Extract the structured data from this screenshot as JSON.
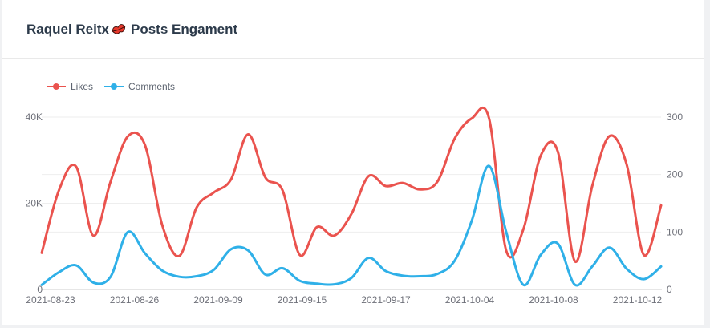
{
  "header": {
    "title_prefix": "Raquel Reitx",
    "title_suffix": "Posts Engament",
    "emoji_icon": "kiss-mark"
  },
  "legend": {
    "items": [
      {
        "label": "Likes",
        "color": "#ea534e"
      },
      {
        "label": "Comments",
        "color": "#2fb0e8"
      }
    ]
  },
  "chart_data": {
    "type": "line",
    "smooth": true,
    "title": "Raquel Reitx💋 Posts Engament",
    "legend_position": "top-left",
    "grid": true,
    "x_tick_labels": [
      "2021-08-23",
      "2021-08-26",
      "2021-09-09",
      "2021-09-15",
      "2021-09-17",
      "2021-10-04",
      "2021-10-08",
      "2021-10-12"
    ],
    "x_label_every": 5,
    "y_left": {
      "ticks": [
        "40K",
        "20K",
        "0"
      ],
      "max": 40000,
      "min": 0
    },
    "y_right": {
      "ticks": [
        "300",
        "200",
        "100",
        "0"
      ],
      "max": 300,
      "min": 0
    },
    "series": [
      {
        "name": "Likes",
        "axis": "left",
        "color": "#ea534e",
        "values": [
          8500,
          23000,
          28500,
          12500,
          25000,
          35500,
          33500,
          15000,
          7800,
          19000,
          22500,
          25500,
          36000,
          26000,
          23000,
          8000,
          14500,
          12500,
          17500,
          26300,
          24000,
          24700,
          23200,
          25000,
          35000,
          39700,
          39700,
          9000,
          14000,
          31000,
          32000,
          6500,
          24000,
          35600,
          29000,
          8000,
          19500
        ]
      },
      {
        "name": "Comments",
        "axis": "right",
        "color": "#2fb0e8",
        "values": [
          8,
          30,
          42,
          12,
          22,
          100,
          63,
          33,
          22,
          23,
          34,
          70,
          68,
          26,
          37,
          15,
          10,
          9,
          20,
          55,
          32,
          24,
          23,
          27,
          50,
          120,
          215,
          100,
          8,
          60,
          80,
          8,
          40,
          73,
          36,
          18,
          40
        ]
      }
    ],
    "colors": {
      "grid_line": "#eeeeee",
      "axis_line": "#cccccc",
      "axis_label": "#6e7079"
    }
  }
}
